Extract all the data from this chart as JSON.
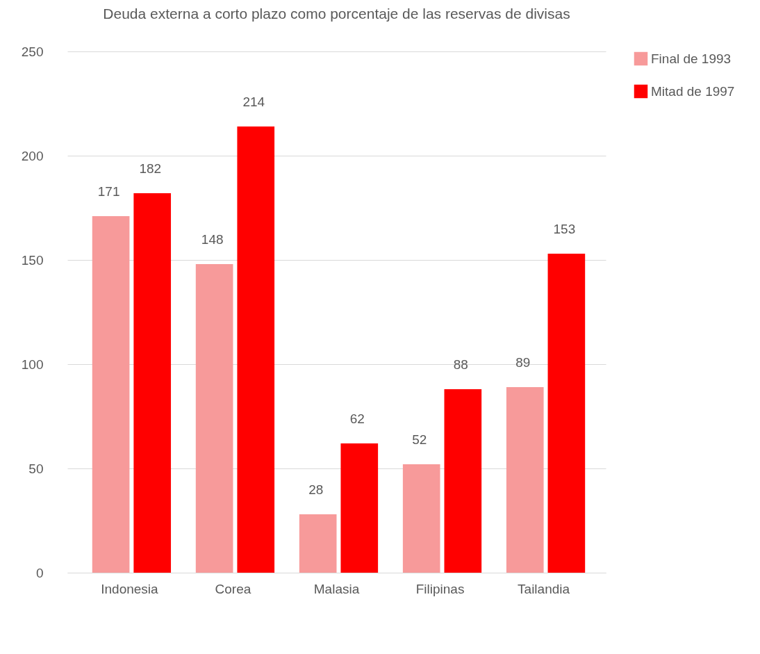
{
  "chart_data": {
    "type": "bar",
    "title": "Deuda externa a corto plazo como porcentaje de las reservas de divisas",
    "categories": [
      "Indonesia",
      "Corea",
      "Malasia",
      "Filipinas",
      "Tailandia"
    ],
    "series": [
      {
        "name": "Final de 1993",
        "color": "#f79a9a",
        "values": [
          171,
          148,
          28,
          52,
          89
        ]
      },
      {
        "name": "Mitad de 1997",
        "color": "#ff0000",
        "values": [
          182,
          214,
          62,
          88,
          153
        ]
      }
    ],
    "ylim": [
      0,
      250
    ],
    "yticks": [
      0,
      50,
      100,
      150,
      200,
      250
    ],
    "grid": "y",
    "legend": "right",
    "data_labels": true
  }
}
